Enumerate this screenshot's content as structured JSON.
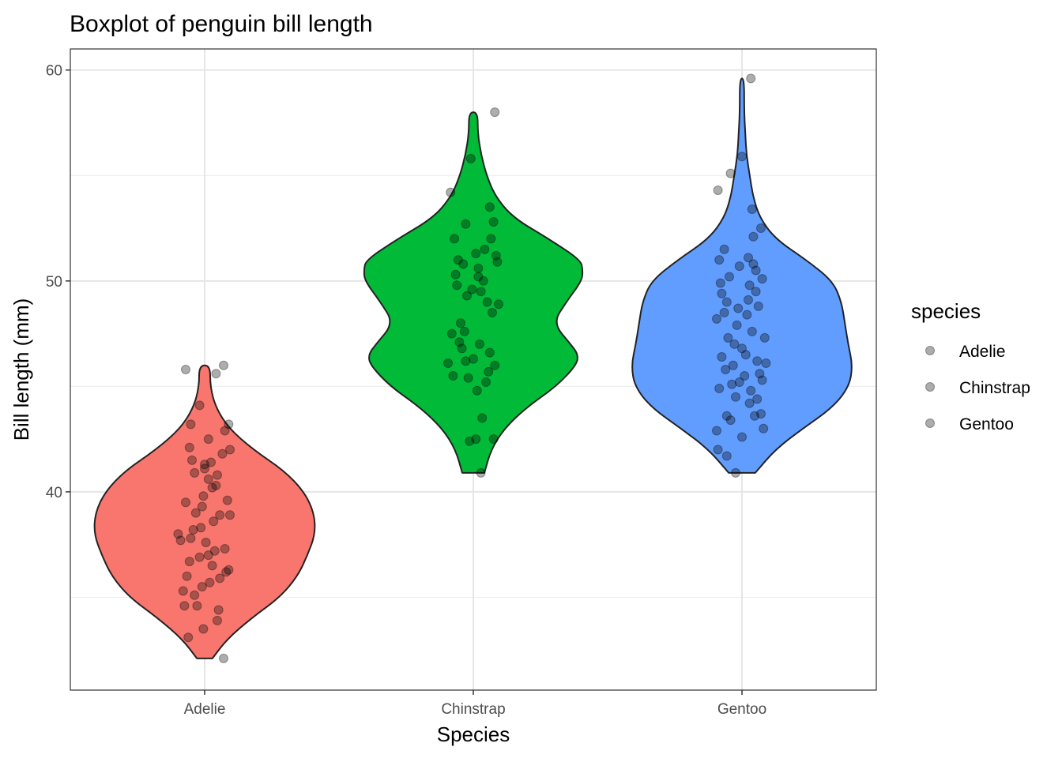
{
  "chart_data": {
    "type": "violin",
    "title": "Boxplot of penguin bill length",
    "xlabel": "Species",
    "ylabel": "Bill length (mm)",
    "categories": [
      "Adelie",
      "Chinstrap",
      "Gentoo"
    ],
    "ylim": [
      30.6,
      61.0
    ],
    "yticks": [
      40,
      50,
      60
    ],
    "grid": true,
    "legend": {
      "title": "species",
      "position": "right",
      "items": [
        "Adelie",
        "Chinstrap",
        "Gentoo"
      ]
    },
    "colors": {
      "Adelie": "#F8766D",
      "Chinstrap": "#00BA38",
      "Gentoo": "#619CFF"
    },
    "violins": [
      {
        "name": "Adelie",
        "min": 32.1,
        "max": 46.0,
        "profile": [
          [
            32.1,
            0.07
          ],
          [
            33.0,
            0.2
          ],
          [
            34.0,
            0.42
          ],
          [
            35.0,
            0.68
          ],
          [
            36.0,
            0.84
          ],
          [
            37.0,
            0.93
          ],
          [
            38.0,
            1.0
          ],
          [
            39.0,
            0.99
          ],
          [
            40.0,
            0.9
          ],
          [
            41.0,
            0.72
          ],
          [
            42.0,
            0.44
          ],
          [
            43.0,
            0.22
          ],
          [
            44.0,
            0.1
          ],
          [
            45.0,
            0.05
          ],
          [
            46.0,
            0.05
          ]
        ]
      },
      {
        "name": "Chinstrap",
        "min": 40.9,
        "max": 58.0,
        "profile": [
          [
            40.9,
            0.1
          ],
          [
            42.0,
            0.16
          ],
          [
            43.0,
            0.28
          ],
          [
            44.0,
            0.48
          ],
          [
            45.0,
            0.75
          ],
          [
            46.0,
            0.93
          ],
          [
            46.5,
            0.95
          ],
          [
            47.0,
            0.88
          ],
          [
            48.0,
            0.72
          ],
          [
            49.0,
            0.84
          ],
          [
            50.0,
            0.98
          ],
          [
            50.5,
            0.99
          ],
          [
            51.0,
            0.97
          ],
          [
            52.0,
            0.68
          ],
          [
            53.0,
            0.36
          ],
          [
            54.0,
            0.2
          ],
          [
            55.0,
            0.12
          ],
          [
            56.0,
            0.07
          ],
          [
            57.0,
            0.04
          ],
          [
            58.0,
            0.04
          ]
        ]
      },
      {
        "name": "Gentoo",
        "min": 40.9,
        "max": 59.6,
        "profile": [
          [
            40.9,
            0.12
          ],
          [
            42.0,
            0.3
          ],
          [
            43.0,
            0.55
          ],
          [
            44.0,
            0.82
          ],
          [
            45.0,
            0.97
          ],
          [
            46.0,
            1.0
          ],
          [
            47.0,
            0.96
          ],
          [
            48.0,
            0.93
          ],
          [
            49.0,
            0.9
          ],
          [
            50.0,
            0.82
          ],
          [
            51.0,
            0.58
          ],
          [
            52.0,
            0.3
          ],
          [
            53.0,
            0.16
          ],
          [
            54.0,
            0.1
          ],
          [
            55.0,
            0.07
          ],
          [
            56.0,
            0.04
          ],
          [
            57.0,
            0.03
          ],
          [
            58.0,
            0.02
          ],
          [
            59.6,
            0.02
          ]
        ]
      }
    ],
    "points": {
      "Adelie": [
        [
          -0.11,
          37.8
        ],
        [
          0.06,
          40.2
        ],
        [
          0.03,
          40.6
        ],
        [
          -0.09,
          38.2
        ],
        [
          0.12,
          38.9
        ],
        [
          -0.02,
          39.3
        ],
        [
          0.1,
          40.8
        ],
        [
          -0.12,
          42.1
        ],
        [
          0.16,
          42.9
        ],
        [
          0.19,
          43.2
        ],
        [
          0.2,
          42.0
        ],
        [
          -0.04,
          44.1
        ],
        [
          0.09,
          45.6
        ],
        [
          -0.15,
          45.8
        ],
        [
          0.15,
          46.0
        ],
        [
          -0.21,
          38.0
        ],
        [
          0.2,
          38.9
        ],
        [
          0.08,
          37.2
        ],
        [
          -0.14,
          36.0
        ],
        [
          -0.02,
          35.5
        ],
        [
          0.19,
          36.3
        ],
        [
          0.11,
          34.4
        ],
        [
          -0.06,
          34.6
        ],
        [
          -0.13,
          33.1
        ],
        [
          -0.01,
          33.5
        ],
        [
          0.15,
          32.1
        ],
        [
          0.0,
          41.3
        ],
        [
          -0.08,
          40.9
        ],
        [
          0.03,
          37.0
        ],
        [
          -0.12,
          36.7
        ],
        [
          0.06,
          36.5
        ],
        [
          0.12,
          35.9
        ],
        [
          -0.17,
          35.3
        ],
        [
          0.18,
          39.6
        ],
        [
          -0.07,
          39.0
        ],
        [
          0.07,
          38.6
        ],
        [
          -0.19,
          37.7
        ],
        [
          0.16,
          37.3
        ],
        [
          -0.04,
          36.9
        ],
        [
          0.04,
          35.7
        ],
        [
          -0.08,
          35.1
        ],
        [
          0.0,
          41.1
        ],
        [
          -0.1,
          41.5
        ],
        [
          0.14,
          41.8
        ],
        [
          -0.15,
          39.5
        ],
        [
          0.09,
          40.3
        ],
        [
          -0.03,
          38.3
        ],
        [
          0.01,
          37.6
        ],
        [
          0.17,
          36.2
        ],
        [
          -0.16,
          34.6
        ],
        [
          0.1,
          33.9
        ],
        [
          0.03,
          42.5
        ],
        [
          -0.11,
          43.2
        ],
        [
          0.05,
          41.4
        ],
        [
          -0.01,
          39.8
        ]
      ],
      "Chinstrap": [
        [
          -0.18,
          54.2
        ],
        [
          -0.02,
          55.8
        ],
        [
          0.17,
          58.0
        ],
        [
          0.13,
          53.5
        ],
        [
          0.16,
          52.8
        ],
        [
          -0.06,
          52.7
        ],
        [
          -0.15,
          52.0
        ],
        [
          0.14,
          52.0
        ],
        [
          0.18,
          51.2
        ],
        [
          0.02,
          51.3
        ],
        [
          -0.12,
          51.0
        ],
        [
          -0.08,
          50.8
        ],
        [
          0.19,
          50.9
        ],
        [
          0.04,
          50.2
        ],
        [
          -0.01,
          49.6
        ],
        [
          0.11,
          49.0
        ],
        [
          0.2,
          48.9
        ],
        [
          -0.1,
          48.0
        ],
        [
          -0.07,
          47.6
        ],
        [
          0.05,
          47.0
        ],
        [
          -0.09,
          46.8
        ],
        [
          0.0,
          46.3
        ],
        [
          0.13,
          46.6
        ],
        [
          0.17,
          46.0
        ],
        [
          -0.2,
          46.1
        ],
        [
          -0.16,
          45.5
        ],
        [
          -0.04,
          45.4
        ],
        [
          0.12,
          45.7
        ],
        [
          -0.14,
          50.3
        ],
        [
          0.08,
          50.0
        ],
        [
          -0.05,
          49.3
        ],
        [
          0.06,
          49.5
        ],
        [
          -0.11,
          47.1
        ],
        [
          0.03,
          44.8
        ],
        [
          0.07,
          43.5
        ],
        [
          0.02,
          42.5
        ],
        [
          0.16,
          42.5
        ],
        [
          0.06,
          40.9
        ],
        [
          -0.03,
          42.4
        ],
        [
          0.09,
          51.5
        ],
        [
          -0.13,
          49.8
        ],
        [
          0.15,
          48.5
        ],
        [
          -0.17,
          47.5
        ],
        [
          0.1,
          45.2
        ],
        [
          -0.06,
          46.2
        ],
        [
          0.04,
          50.6
        ]
      ],
      "Gentoo": [
        [
          0.07,
          59.6
        ],
        [
          0.0,
          55.9
        ],
        [
          -0.19,
          54.3
        ],
        [
          -0.09,
          55.1
        ],
        [
          0.08,
          53.4
        ],
        [
          0.15,
          52.5
        ],
        [
          0.09,
          52.1
        ],
        [
          -0.14,
          51.5
        ],
        [
          0.05,
          51.1
        ],
        [
          -0.18,
          51.0
        ],
        [
          0.11,
          50.5
        ],
        [
          -0.02,
          50.7
        ],
        [
          0.16,
          50.1
        ],
        [
          0.06,
          49.8
        ],
        [
          -0.16,
          49.4
        ],
        [
          -0.12,
          49.0
        ],
        [
          -0.03,
          48.7
        ],
        [
          0.13,
          48.8
        ],
        [
          -0.2,
          48.2
        ],
        [
          0.04,
          48.4
        ],
        [
          0.08,
          47.6
        ],
        [
          0.18,
          47.3
        ],
        [
          -0.06,
          47.0
        ],
        [
          0.0,
          46.8
        ],
        [
          -0.16,
          46.4
        ],
        [
          0.12,
          46.2
        ],
        [
          -0.13,
          45.8
        ],
        [
          0.02,
          45.5
        ],
        [
          0.16,
          45.3
        ],
        [
          -0.08,
          45.1
        ],
        [
          -0.18,
          44.9
        ],
        [
          -0.05,
          44.5
        ],
        [
          0.06,
          44.2
        ],
        [
          0.15,
          43.7
        ],
        [
          -0.12,
          43.6
        ],
        [
          -0.09,
          43.4
        ],
        [
          0.1,
          43.6
        ],
        [
          0.17,
          43.0
        ],
        [
          -0.2,
          42.9
        ],
        [
          -0.19,
          42.0
        ],
        [
          -0.12,
          41.7
        ],
        [
          -0.05,
          40.9
        ],
        [
          0.0,
          42.6
        ],
        [
          0.11,
          49.5
        ],
        [
          -0.1,
          50.2
        ],
        [
          0.03,
          46.5
        ],
        [
          -0.04,
          47.9
        ],
        [
          0.14,
          45.6
        ],
        [
          -0.14,
          48.5
        ],
        [
          0.07,
          44.8
        ],
        [
          -0.07,
          46.0
        ],
        [
          0.19,
          46.1
        ],
        [
          -0.11,
          47.3
        ],
        [
          0.05,
          49.1
        ],
        [
          -0.02,
          45.2
        ],
        [
          0.09,
          50.8
        ],
        [
          -0.17,
          49.9
        ],
        [
          0.12,
          44.4
        ]
      ]
    }
  }
}
